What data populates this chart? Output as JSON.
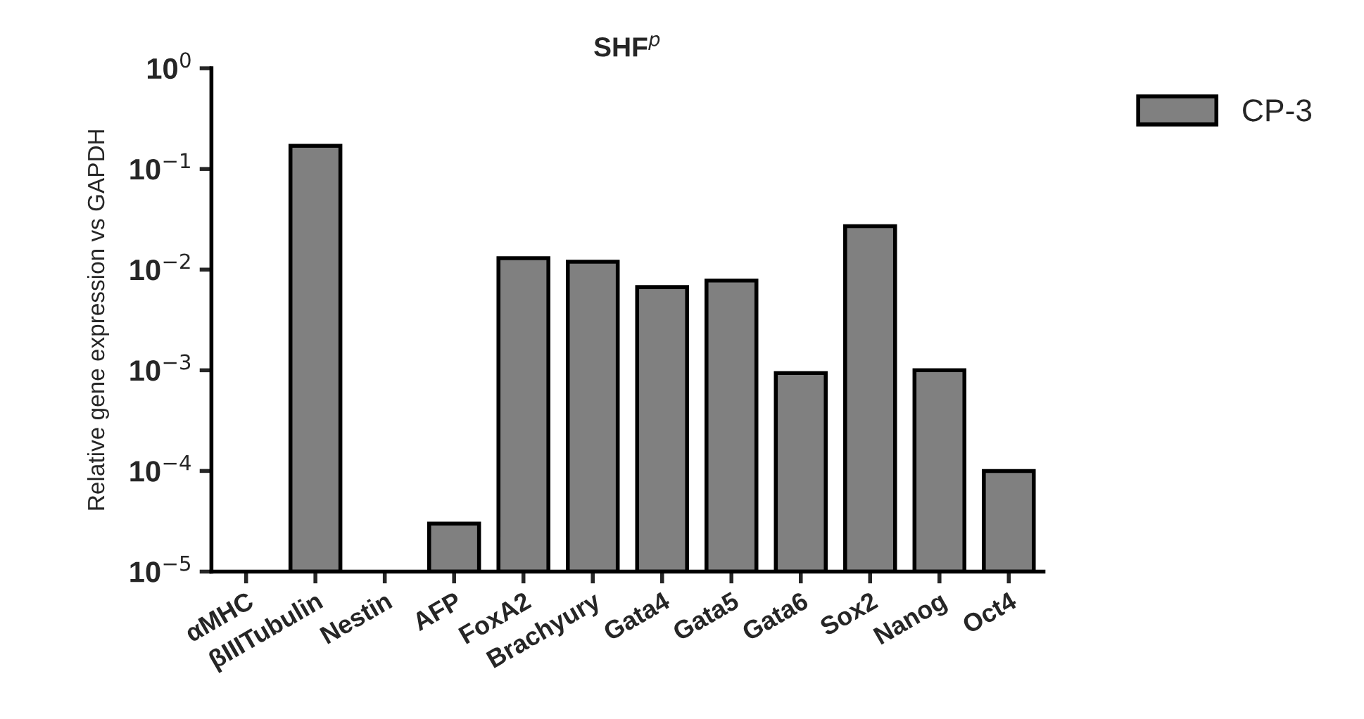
{
  "chart_data": {
    "type": "bar",
    "title": "SHF$^{p}$",
    "ylabel": "Relative gene expression vs GAPDH",
    "categories": [
      "αMHC",
      "βIIITubulin",
      "Nestin",
      "AFP",
      "FoxA2",
      "Brachyury",
      "Gata4",
      "Gata5",
      "Gata6",
      "Sox2",
      "Nanog",
      "Oct4"
    ],
    "series": [
      {
        "name": "CP-3",
        "color": "#808080",
        "values": [
          null,
          0.17,
          null,
          3e-05,
          0.013,
          0.012,
          0.0067,
          0.0078,
          0.00094,
          0.027,
          0.001,
          0.0001
        ]
      }
    ],
    "log": true,
    "ylim": [
      1e-05,
      1
    ],
    "yticks": [
      {
        "value": 1e-05,
        "label": "10$^{−5}$"
      },
      {
        "value": 0.0001,
        "label": "10$^{−4}$"
      },
      {
        "value": 0.001,
        "label": "10$^{−3}$"
      },
      {
        "value": 0.01,
        "label": "10$^{−2}$"
      },
      {
        "value": 0.1,
        "label": "10$^{−1}$"
      },
      {
        "value": 1,
        "label": "10$^{0}$"
      }
    ],
    "grid": false,
    "legend": "right"
  }
}
